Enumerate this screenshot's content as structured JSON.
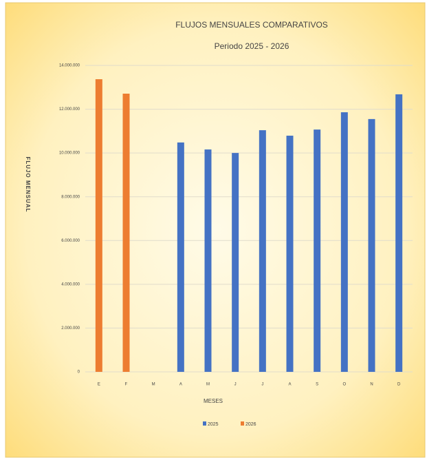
{
  "chart_data": {
    "type": "bar",
    "title": "FLUJOS MENSUALES COMPARATIVOS",
    "subtitle": "Periodo 2025 - 2026",
    "y_axis_label": "FLUJO MENSUAL",
    "x_axis_label": "MESES",
    "categories": [
      "E",
      "F",
      "M",
      "A",
      "M",
      "J",
      "J",
      "A",
      "S",
      "O",
      "N",
      "D"
    ],
    "series": [
      {
        "name": "2025",
        "color": "#4472c4",
        "values": [
          null,
          null,
          null,
          10480000,
          10160000,
          10000000,
          11040000,
          10790000,
          11070000,
          11860000,
          11550000,
          12680000
        ]
      },
      {
        "name": "2026",
        "color": "#ed7d31",
        "values": [
          13370000,
          12710000,
          null,
          null,
          null,
          null,
          null,
          null,
          null,
          null,
          null,
          null
        ]
      }
    ],
    "ylim": [
      0,
      14000000
    ],
    "yticks": [
      0,
      {
        "value": 2000000,
        "label": "2.000.000"
      },
      {
        "value": 4000000,
        "label": "4.000.000"
      },
      {
        "value": 6000000,
        "label": "6.000.000"
      },
      {
        "value": 8000000,
        "label": "8.000.000"
      },
      {
        "value": 10000000,
        "label": "10.000.000"
      },
      {
        "value": 12000000,
        "label": "12.000.000"
      },
      {
        "value": 14000000,
        "label": "14.000.000"
      }
    ],
    "grid": true,
    "legend": "bottom"
  }
}
